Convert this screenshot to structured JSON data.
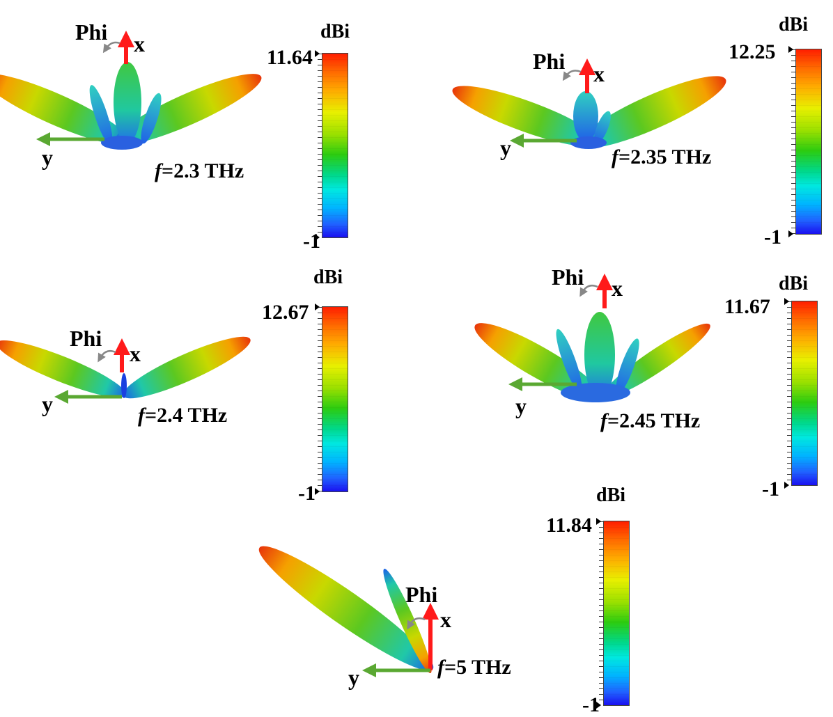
{
  "panels": [
    {
      "freq_prefix": "f",
      "freq_value": "=2.3 THz",
      "colorbar_unit": "dBi",
      "colorbar_max": "11.64",
      "colorbar_min": "-1",
      "phi_label": "Phi",
      "x_axis_label": "x",
      "y_axis_label": "y"
    },
    {
      "freq_prefix": "f",
      "freq_value": "=2.35 THz",
      "colorbar_unit": "dBi",
      "colorbar_max": "12.25",
      "colorbar_min": "-1",
      "phi_label": "Phi",
      "x_axis_label": "x",
      "y_axis_label": "y"
    },
    {
      "freq_prefix": "f",
      "freq_value": "=2.4 THz",
      "colorbar_unit": "dBi",
      "colorbar_max": "12.67",
      "colorbar_min": "-1",
      "phi_label": "Phi",
      "x_axis_label": "x",
      "y_axis_label": "y"
    },
    {
      "freq_prefix": "f",
      "freq_value": "=2.45 THz",
      "colorbar_unit": "dBi",
      "colorbar_max": "11.67",
      "colorbar_min": "-1",
      "phi_label": "Phi",
      "x_axis_label": "x",
      "y_axis_label": "y"
    },
    {
      "freq_prefix": "f",
      "freq_value": "=5 THz",
      "colorbar_unit": "dBi",
      "colorbar_max": "11.84",
      "colorbar_min": "-1",
      "phi_label": "Phi",
      "x_axis_label": "x",
      "y_axis_label": "y"
    }
  ],
  "colors": {
    "x_axis_arrow": "#ff1a1a",
    "y_axis_arrow": "#5aa832",
    "phi_arc": "#888888"
  }
}
